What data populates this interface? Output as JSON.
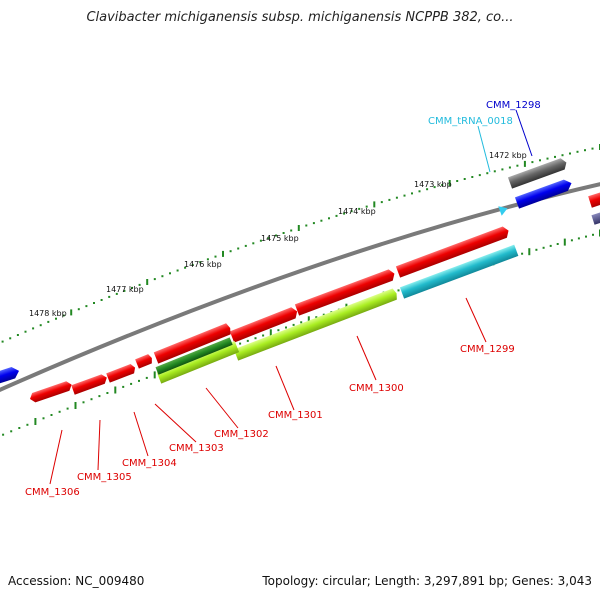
{
  "title": "Clavibacter michiganensis subsp. michiganensis NCPPB 382, co...",
  "accession": "Accession: NC_009480",
  "summary": "Topology: circular; Length: 3,297,891 bp; Genes: 3,043",
  "colors": {
    "backbone": "#7a7a7a",
    "forward_gene": "#ee0000",
    "cds_green": "#aaee22",
    "cds_dark_green": "#228822",
    "cds_cyan": "#22bbcc",
    "trna": "#33ccee",
    "blue_gene": "#0000ee",
    "gray_gene": "#666666",
    "tick": "#228822",
    "label_red": "#dd0000",
    "label_blue": "#0000cc",
    "label_cyan": "#22bbdd"
  },
  "kbp_labels": [
    "1472 kbp",
    "1473 kbp",
    "1474 kbp",
    "1475 kbp",
    "1476 kbp",
    "1477 kbp",
    "1478 kbp"
  ],
  "gene_labels": [
    {
      "id": "CMM_1298",
      "color": "blue"
    },
    {
      "id": "CMM_tRNA_0018",
      "color": "cyan"
    },
    {
      "id": "CMM_1299",
      "color": "red"
    },
    {
      "id": "CMM_1300",
      "color": "red"
    },
    {
      "id": "CMM_1301",
      "color": "red"
    },
    {
      "id": "CMM_1302",
      "color": "red"
    },
    {
      "id": "CMM_1303",
      "color": "red"
    },
    {
      "id": "CMM_1304",
      "color": "red"
    },
    {
      "id": "CMM_1305",
      "color": "red"
    },
    {
      "id": "CMM_1306",
      "color": "red"
    }
  ]
}
